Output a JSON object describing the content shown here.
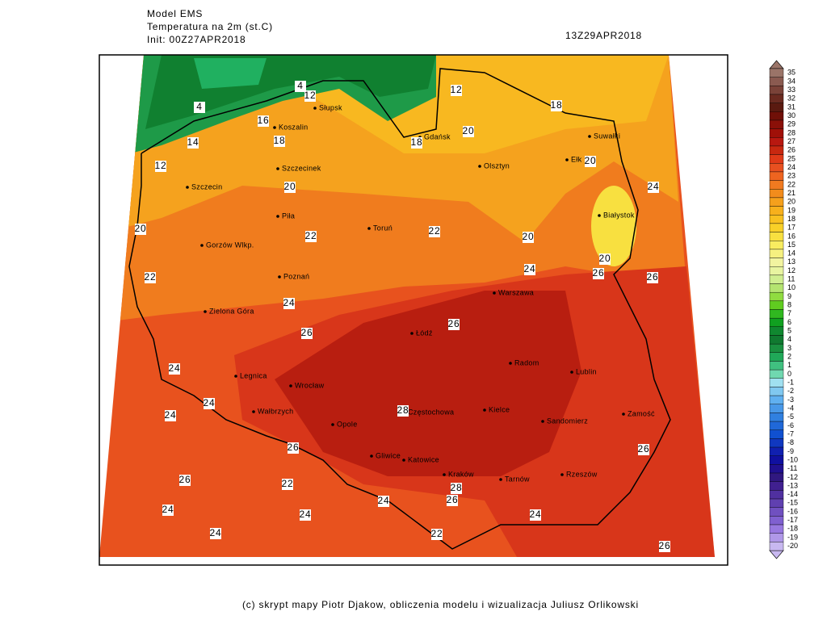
{
  "header": {
    "model": "Model EMS",
    "variable": "Temperatura na 2m (st.C)",
    "init": "Init: 00Z27APR2018",
    "valid": "13Z29APR2018"
  },
  "footer": "(c) skrypt mapy Piotr Djakow, obliczenia modelu i wizualizacja Juliusz Orlikowski",
  "colorbar": {
    "levels": [
      35,
      34,
      33,
      32,
      31,
      30,
      29,
      28,
      27,
      26,
      25,
      24,
      23,
      22,
      21,
      20,
      19,
      18,
      17,
      16,
      15,
      14,
      13,
      12,
      11,
      10,
      9,
      8,
      7,
      6,
      5,
      4,
      3,
      2,
      1,
      0,
      -1,
      -2,
      -3,
      -4,
      -5,
      -6,
      -7,
      -8,
      -9,
      -10,
      -11,
      -12,
      -13,
      -14,
      -15,
      -16,
      -17,
      -18,
      -19,
      -20
    ],
    "colors": [
      "#9a7468",
      "#8a5a50",
      "#7a4238",
      "#6a2a20",
      "#5a1a10",
      "#701008",
      "#8a1008",
      "#a01008",
      "#b81810",
      "#c82810",
      "#e03a18",
      "#e85020",
      "#ee6420",
      "#f07a20",
      "#f28c1c",
      "#f5a01c",
      "#f7b01c",
      "#f8c020",
      "#f8d028",
      "#f8e040",
      "#f8ec60",
      "#f6f080",
      "#f2f4a0",
      "#e8f4a0",
      "#d0ee90",
      "#b4e470",
      "#90dc40",
      "#60cc20",
      "#30b820",
      "#10a020",
      "#108830",
      "#107a30",
      "#1a9040",
      "#20a858",
      "#40c080",
      "#70d8b0",
      "#a0e0f0",
      "#80c8f0",
      "#60b0f0",
      "#4898e8",
      "#3080e0",
      "#2068d8",
      "#1050d0",
      "#1038c0",
      "#1020b0",
      "#1010a0",
      "#201090",
      "#301880",
      "#402090",
      "#5030a0",
      "#6040b0",
      "#7050c0",
      "#8060d0",
      "#9878e0",
      "#b098e8",
      "#c8b8f0"
    ]
  },
  "contour_labels": [
    4,
    4,
    12,
    16,
    18,
    14,
    12,
    20,
    20,
    22,
    22,
    22,
    12,
    18,
    18,
    20,
    20,
    24,
    20,
    24,
    20,
    26,
    26,
    24,
    26,
    26,
    24,
    24,
    24,
    28,
    26,
    26,
    22,
    24,
    24,
    24,
    26,
    28,
    24,
    26,
    22,
    24,
    26
  ],
  "cities": [
    "Słupsk",
    "Koszalin",
    "Gdańsk",
    "Olsztyn",
    "Suwałki",
    "Ełk",
    "Szczecinek",
    "Szczecin",
    "Piła",
    "Toruń",
    "Białystok",
    "Gorzów Wlkp.",
    "Poznań",
    "Warszawa",
    "Zielona Góra",
    "Łódź",
    "Radom",
    "Lublin",
    "Legnica",
    "Wrocław",
    "Wałbrzych",
    "Opole",
    "Częstochowa",
    "Kielce",
    "Sandomierz",
    "Zamość",
    "Gliwice",
    "Katowice",
    "Kraków",
    "Tarnów",
    "Rzeszów"
  ]
}
